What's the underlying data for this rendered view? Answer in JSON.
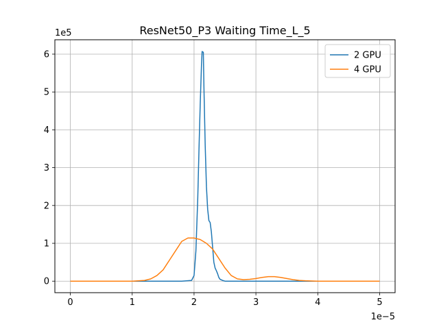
{
  "chart_data": {
    "type": "line",
    "title": "ResNet50_P3 Waiting Time_L_5",
    "xlabel": "",
    "ylabel": "",
    "x_offset_label": "1e−5",
    "y_offset_label": "1e5",
    "x_ticks": [
      0,
      1,
      2,
      3,
      4,
      5
    ],
    "x_tick_labels": [
      "0",
      "1",
      "2",
      "3",
      "4",
      "5"
    ],
    "y_ticks": [
      0,
      1,
      2,
      3,
      4,
      5,
      6
    ],
    "y_tick_labels": [
      "0",
      "1",
      "2",
      "3",
      "4",
      "5",
      "6"
    ],
    "xlim": [
      -0.25,
      5.25
    ],
    "ylim": [
      -0.304,
      6.38
    ],
    "grid": true,
    "legend_position": "top-right",
    "series": [
      {
        "name": "2 GPU",
        "color": "#1f77b4",
        "x": [
          0,
          1.8,
          1.96,
          2.0,
          2.03,
          2.06,
          2.08,
          2.1,
          2.12,
          2.13,
          2.15,
          2.16,
          2.18,
          2.2,
          2.22,
          2.24,
          2.26,
          2.28,
          2.3,
          2.32,
          2.34,
          2.36,
          2.38,
          2.4,
          2.42,
          2.46,
          2.5,
          2.6,
          5.0
        ],
        "y": [
          0,
          0,
          0.02,
          0.15,
          0.8,
          2.2,
          3.5,
          4.7,
          5.7,
          6.07,
          6.05,
          5.1,
          3.6,
          2.5,
          1.9,
          1.6,
          1.55,
          1.3,
          0.9,
          0.5,
          0.35,
          0.28,
          0.2,
          0.1,
          0.05,
          0.02,
          0.0,
          0,
          0
        ]
      },
      {
        "name": "4 GPU",
        "color": "#ff7f0e",
        "x": [
          0,
          1.0,
          1.2,
          1.3,
          1.4,
          1.5,
          1.6,
          1.7,
          1.8,
          1.9,
          2.0,
          2.1,
          2.2,
          2.3,
          2.4,
          2.5,
          2.6,
          2.7,
          2.8,
          2.9,
          3.0,
          3.1,
          3.2,
          3.3,
          3.4,
          3.5,
          3.6,
          3.7,
          3.8,
          4.0,
          5.0
        ],
        "y": [
          0,
          0,
          0.02,
          0.06,
          0.15,
          0.3,
          0.55,
          0.8,
          1.05,
          1.14,
          1.14,
          1.1,
          1.0,
          0.85,
          0.6,
          0.35,
          0.15,
          0.06,
          0.04,
          0.05,
          0.07,
          0.1,
          0.12,
          0.12,
          0.1,
          0.07,
          0.04,
          0.02,
          0.01,
          0,
          0
        ]
      }
    ]
  }
}
